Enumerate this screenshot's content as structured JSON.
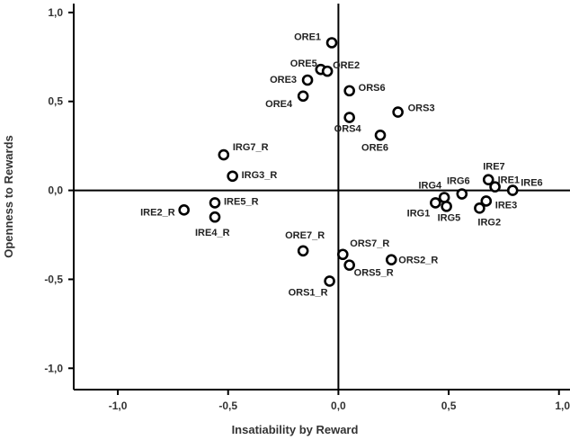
{
  "chart_data": {
    "type": "scatter",
    "title": "",
    "xlabel": "Insatiability by Reward",
    "ylabel": "Openness to Rewards",
    "xlim": [
      -1.2,
      1.05
    ],
    "ylim": [
      -1.12,
      1.05
    ],
    "x_ticks": [
      "-1,0",
      "-0,5",
      "0,0",
      "0,5",
      "1,0"
    ],
    "x_tick_values": [
      -1.0,
      -0.5,
      0.0,
      0.5,
      1.0
    ],
    "y_ticks": [
      "1,0",
      "0,5",
      "0,0",
      "-0,5",
      "-1,0"
    ],
    "y_tick_values": [
      1.0,
      0.5,
      0.0,
      -0.5,
      -1.0
    ],
    "grid": false,
    "legend": "none",
    "marker_color": "#000000",
    "axis_color": "#000000",
    "points": [
      {
        "label": "ORE1",
        "x": -0.03,
        "y": 0.83
      },
      {
        "label": "ORE5",
        "x": -0.08,
        "y": 0.68
      },
      {
        "label": "ORE2",
        "x": -0.05,
        "y": 0.67
      },
      {
        "label": "ORE3",
        "x": -0.14,
        "y": 0.62
      },
      {
        "label": "ORE4",
        "x": -0.16,
        "y": 0.53
      },
      {
        "label": "ORS6",
        "x": 0.05,
        "y": 0.56
      },
      {
        "label": "ORS3",
        "x": 0.27,
        "y": 0.44
      },
      {
        "label": "ORS4",
        "x": 0.05,
        "y": 0.41
      },
      {
        "label": "ORE6",
        "x": 0.19,
        "y": 0.31
      },
      {
        "label": "IRG7_R",
        "x": -0.52,
        "y": 0.2
      },
      {
        "label": "IRG3_R",
        "x": -0.48,
        "y": 0.08
      },
      {
        "label": "IRE7",
        "x": 0.68,
        "y": 0.06
      },
      {
        "label": "IRE1",
        "x": 0.71,
        "y": 0.02
      },
      {
        "label": "IRE6",
        "x": 0.79,
        "y": 0.0
      },
      {
        "label": "IRG6",
        "x": 0.56,
        "y": -0.02
      },
      {
        "label": "IRG4",
        "x": 0.48,
        "y": -0.04
      },
      {
        "label": "IRG1",
        "x": 0.44,
        "y": -0.07
      },
      {
        "label": "IRG5",
        "x": 0.49,
        "y": -0.09
      },
      {
        "label": "IRE3",
        "x": 0.67,
        "y": -0.06
      },
      {
        "label": "IRG2",
        "x": 0.64,
        "y": -0.1
      },
      {
        "label": "IRE2_R",
        "x": -0.7,
        "y": -0.11
      },
      {
        "label": "IRE5_R",
        "x": -0.56,
        "y": -0.07
      },
      {
        "label": "IRE4_R",
        "x": -0.56,
        "y": -0.15
      },
      {
        "label": "ORE7_R",
        "x": -0.16,
        "y": -0.34
      },
      {
        "label": "ORS7_R",
        "x": 0.02,
        "y": -0.36
      },
      {
        "label": "ORS2_R",
        "x": 0.24,
        "y": -0.39
      },
      {
        "label": "ORS5_R",
        "x": 0.05,
        "y": -0.42
      },
      {
        "label": "ORS1_R",
        "x": -0.04,
        "y": -0.51
      }
    ]
  }
}
